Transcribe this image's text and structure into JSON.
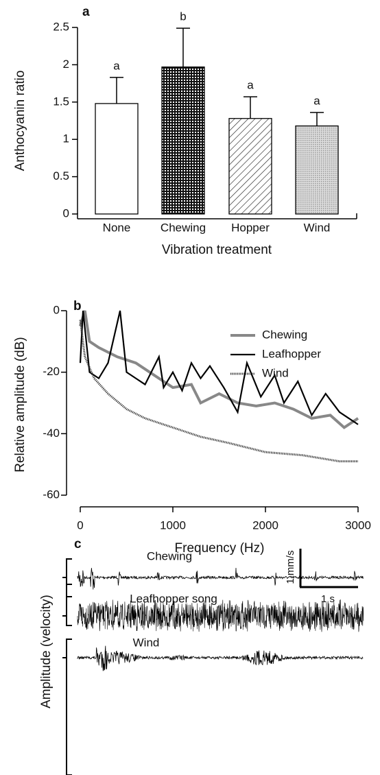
{
  "chart_data": [
    {
      "type": "bar",
      "panel_label": "a",
      "ylabel": "Anthocyanin ratio",
      "xlabel": "Vibration treatment",
      "categories": [
        "None",
        "Chewing",
        "Hopper",
        "Wind"
      ],
      "values": [
        1.48,
        1.97,
        1.28,
        1.18
      ],
      "errors": [
        0.35,
        0.52,
        0.29,
        0.18
      ],
      "letters": [
        "a",
        "b",
        "a",
        "a"
      ],
      "patterns": [
        "none",
        "dense-dots",
        "diagonal",
        "light-dots"
      ],
      "ylim": [
        0,
        2.5
      ],
      "yticks": [
        0,
        0.5,
        1,
        1.5,
        2,
        2.5
      ]
    },
    {
      "type": "line",
      "panel_label": "b",
      "ylabel": "Relative amplitude (dB)",
      "xlabel": "Frequency (Hz)",
      "xlim": [
        0,
        3000
      ],
      "xticks": [
        0,
        1000,
        2000,
        3000
      ],
      "ylim": [
        -60,
        0
      ],
      "yticks": [
        -60,
        -40,
        -20,
        0
      ],
      "legend": "top-right",
      "series": [
        {
          "name": "Chewing",
          "color": "#888888",
          "style": "solid",
          "x": [
            0,
            50,
            100,
            200,
            400,
            600,
            800,
            1000,
            1200,
            1300,
            1500,
            1700,
            1900,
            2100,
            2300,
            2500,
            2700,
            2850,
            3000
          ],
          "values": [
            -5,
            0,
            -10,
            -12,
            -15,
            -17,
            -21,
            -25,
            -24,
            -30,
            -27,
            -30,
            -31,
            -30,
            -32,
            -35,
            -34,
            -38,
            -35
          ]
        },
        {
          "name": "Leafhopper",
          "color": "#000000",
          "style": "solid",
          "x": [
            0,
            30,
            100,
            200,
            300,
            430,
            500,
            600,
            700,
            850,
            900,
            1000,
            1100,
            1200,
            1300,
            1400,
            1550,
            1700,
            1800,
            1950,
            2100,
            2200,
            2350,
            2500,
            2650,
            2800,
            3000
          ],
          "values": [
            -17,
            0,
            -20,
            -22,
            -17,
            0,
            -20,
            -22,
            -24,
            -15,
            -25,
            -20,
            -26,
            -17,
            -22,
            -18,
            -25,
            -33,
            -17,
            -28,
            -21,
            -30,
            -23,
            -34,
            -27,
            -33,
            -37
          ]
        },
        {
          "name": "Wind",
          "color": "#333333",
          "style": "dotted",
          "x": [
            0,
            50,
            150,
            300,
            500,
            700,
            1000,
            1300,
            1600,
            2000,
            2400,
            2800,
            3000
          ],
          "values": [
            -3,
            -15,
            -22,
            -27,
            -32,
            -35,
            -38,
            -41,
            -43,
            -46,
            -47,
            -49,
            -49
          ]
        }
      ]
    },
    {
      "type": "waveform",
      "panel_label": "c",
      "ylabel": "Amplitude (velocity)",
      "traces": [
        "Chewing",
        "Leafhopper song",
        "Wind"
      ],
      "scale_y": "1 mm/s",
      "scale_x": "1 s"
    }
  ]
}
